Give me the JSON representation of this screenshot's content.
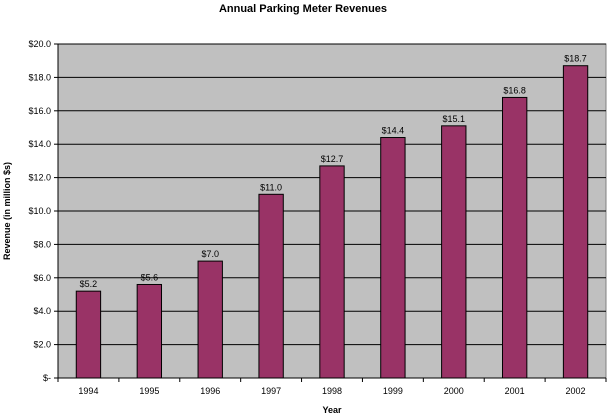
{
  "chart_data": {
    "type": "bar",
    "title": "Annual Parking Meter Revenues",
    "xlabel": "Year",
    "ylabel": "Revenue (in million $s)",
    "categories": [
      "1994",
      "1995",
      "1996",
      "1997",
      "1998",
      "1999",
      "2000",
      "2001",
      "2002"
    ],
    "values": [
      5.2,
      5.6,
      7.0,
      11.0,
      12.7,
      14.4,
      15.1,
      16.8,
      18.7
    ],
    "data_labels": [
      "$5.2",
      "$5.6",
      "$7.0",
      "$11.0",
      "$12.7",
      "$14.4",
      "$15.1",
      "$16.8",
      "$18.7"
    ],
    "ylim": [
      0,
      20
    ],
    "yticks": [
      0,
      2,
      4,
      6,
      8,
      10,
      12,
      14,
      16,
      18,
      20
    ],
    "ytick_labels": [
      "$-",
      "$2.0",
      "$4.0",
      "$6.0",
      "$8.0",
      "$10.0",
      "$12.0",
      "$14.0",
      "$16.0",
      "$18.0",
      "$20.0"
    ],
    "grid": true,
    "legend": "none",
    "colors": {
      "bar": "#993366",
      "plot_background": "#c0c0c0",
      "gridline": "#000000"
    }
  }
}
